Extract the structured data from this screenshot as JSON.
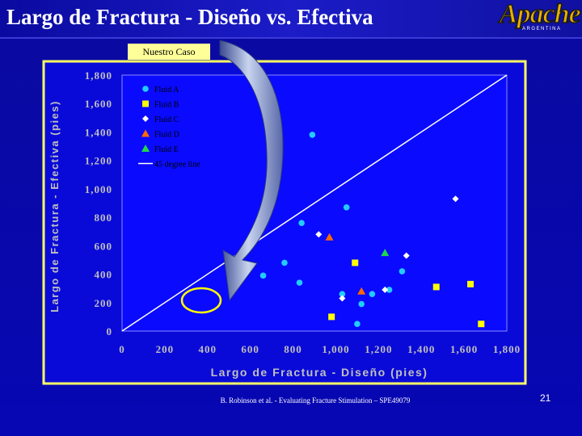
{
  "slide": {
    "title": "Largo de Fractura - Diseño vs. Efectiva",
    "logo_text": "Apache",
    "logo_sub": "ARGENTINA",
    "case_label": "Nuestro Caso",
    "footer_reference": "B. Robinson et al. - Evaluating Fracture Stimulation – SPE49079",
    "page_number": "21"
  },
  "colors": {
    "background": "#0707b4",
    "plot_area": "#0a0aff",
    "frame": "#ffff66",
    "axis_text": "#c0c0c0",
    "fluid_a": "#22ccff",
    "fluid_b": "#ffff00",
    "fluid_c": "#ffffff",
    "fluid_d": "#ff6a00",
    "fluid_e": "#1fd94a",
    "line": "#ffffff",
    "highlight_ellipse": "#ffff00"
  },
  "chart_data": {
    "type": "scatter",
    "title": "",
    "xlabel": "Largo de Fractura - Diseño (pies)",
    "ylabel": "Largo de Fractura - Efectiva (pies)",
    "xlim": [
      0,
      1800
    ],
    "ylim": [
      0,
      1800
    ],
    "x_ticks": [
      "0",
      "200",
      "400",
      "600",
      "800",
      "1,000",
      "1,200",
      "1,400",
      "1,600",
      "1,800"
    ],
    "y_ticks": [
      "0",
      "200",
      "400",
      "600",
      "800",
      "1,000",
      "1,200",
      "1,400",
      "1,600",
      "1,800"
    ],
    "grid": false,
    "legend_position": "top-left",
    "series": [
      {
        "name": "Fluid A",
        "marker": "circle",
        "color": "#22ccff",
        "points": [
          [
            890,
            1380
          ],
          [
            660,
            390
          ],
          [
            760,
            480
          ],
          [
            830,
            340
          ],
          [
            840,
            760
          ],
          [
            1050,
            870
          ],
          [
            1030,
            260
          ],
          [
            1120,
            190
          ],
          [
            1170,
            260
          ],
          [
            1250,
            290
          ],
          [
            1310,
            420
          ],
          [
            1100,
            50
          ]
        ]
      },
      {
        "name": "Fluid B",
        "marker": "square",
        "color": "#ffff00",
        "points": [
          [
            980,
            100
          ],
          [
            1090,
            480
          ],
          [
            1470,
            310
          ],
          [
            1630,
            330
          ],
          [
            1680,
            50
          ]
        ]
      },
      {
        "name": "Fluid C",
        "marker": "diamond",
        "color": "#ffffff",
        "points": [
          [
            920,
            680
          ],
          [
            1030,
            230
          ],
          [
            1230,
            290
          ],
          [
            1330,
            530
          ],
          [
            1560,
            930
          ]
        ]
      },
      {
        "name": "Fluid D",
        "marker": "triangle",
        "color": "#ff6a00",
        "points": [
          [
            970,
            660
          ],
          [
            1120,
            280
          ]
        ]
      },
      {
        "name": "Fluid E",
        "marker": "triangle",
        "color": "#1fd94a",
        "points": [
          [
            1230,
            550
          ]
        ]
      },
      {
        "name": "45 degree line",
        "marker": "line",
        "color": "#ffffff",
        "points": [
          [
            0,
            0
          ],
          [
            1800,
            1800
          ]
        ]
      }
    ]
  }
}
